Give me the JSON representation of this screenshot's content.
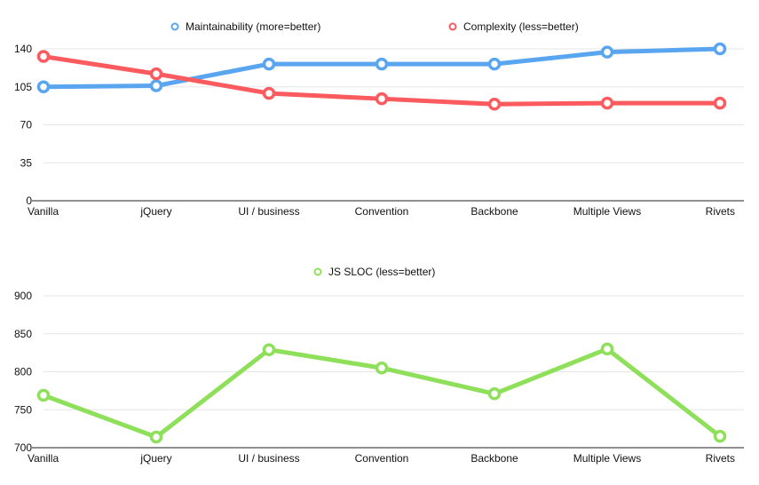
{
  "chart_data": [
    {
      "type": "line",
      "categories": [
        "Vanilla",
        "jQuery",
        "UI / business",
        "Convention",
        "Backbone",
        "Multiple Views",
        "Rivets"
      ],
      "series": [
        {
          "name": "Maintainability (more=better)",
          "color": "#5aa5f0",
          "values": [
            105,
            106,
            126,
            126,
            126,
            137,
            140
          ]
        },
        {
          "name": "Complexity (less=better)",
          "color": "#fb5a5f",
          "values": [
            133,
            117,
            99,
            94,
            89,
            90,
            90
          ]
        }
      ],
      "yticks": [
        0,
        35,
        70,
        105,
        140
      ],
      "ylim": [
        0,
        140
      ],
      "grid": true,
      "legend": "top"
    },
    {
      "type": "line",
      "categories": [
        "Vanilla",
        "jQuery",
        "UI / business",
        "Convention",
        "Backbone",
        "Multiple Views",
        "Rivets"
      ],
      "series": [
        {
          "name": "JS SLOC (less=better)",
          "color": "#8ee05a",
          "values": [
            769,
            714,
            829,
            805,
            771,
            830,
            715
          ]
        }
      ],
      "yticks": [
        700,
        750,
        800,
        850,
        900
      ],
      "ylim": [
        700,
        900
      ],
      "grid": true,
      "legend": "top"
    }
  ]
}
